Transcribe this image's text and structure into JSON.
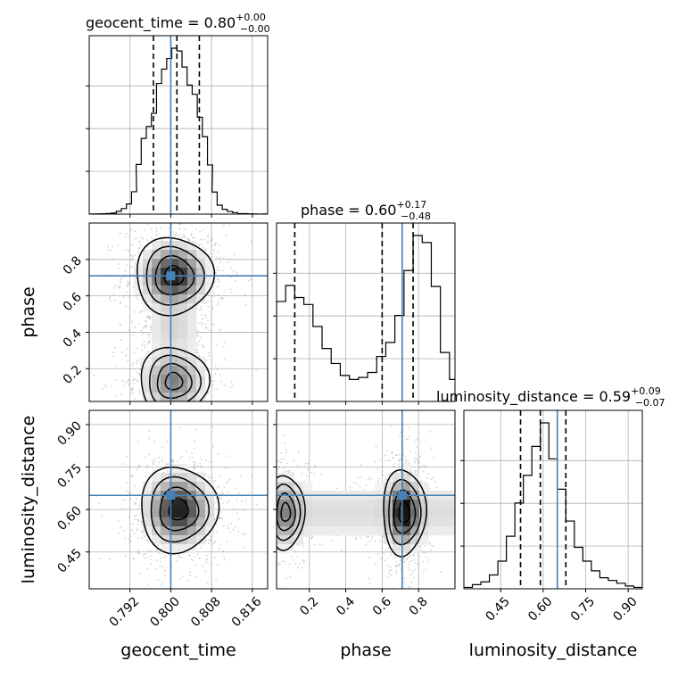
{
  "chart_data": {
    "type": "corner",
    "parameters": [
      "geocent_time",
      "phase",
      "luminosity_distance"
    ],
    "truths": {
      "geocent_time": 0.8,
      "phase": 0.71,
      "luminosity_distance": 0.65
    },
    "truth_color": "#4682b4",
    "grid": true,
    "diagonal": [
      {
        "parameter": "geocent_time",
        "title_name": "geocent_time",
        "title_median": "0.80",
        "title_plus": "+0.00",
        "title_minus": "−0.00",
        "range": [
          0.784,
          0.819
        ],
        "ticks": [
          0.792,
          0.8,
          0.808,
          0.816
        ],
        "tick_labels": [
          "0.792",
          "0.800",
          "0.808",
          "0.816"
        ],
        "quantiles": [
          0.7966,
          0.8012,
          0.8056
        ],
        "hist_x": [
          0.7843,
          0.7853,
          0.7863,
          0.7873,
          0.7883,
          0.7893,
          0.7903,
          0.7913,
          0.7923,
          0.7932,
          0.7942,
          0.7952,
          0.7962,
          0.7972,
          0.7982,
          0.7992,
          0.8002,
          0.8012,
          0.8022,
          0.8032,
          0.8042,
          0.8052,
          0.8062,
          0.8072,
          0.8081,
          0.8091,
          0.8101,
          0.8111,
          0.8121,
          0.8131,
          0.8141,
          0.8151,
          0.8161,
          0.8171,
          0.8181
        ],
        "hist_counts": [
          1,
          2,
          3,
          5,
          8,
          22,
          44,
          81,
          178,
          395,
          603,
          697,
          802,
          1040,
          1154,
          1239,
          1321,
          1299,
          1171,
          1027,
          954,
          771,
          616,
          391,
          176,
          71,
          38,
          21,
          12,
          4,
          4,
          2,
          1,
          0,
          1
        ]
      },
      {
        "parameter": "phase",
        "title_name": "phase",
        "title_median": "0.60",
        "title_plus": "+0.17",
        "title_minus": "−0.48",
        "range": [
          0.02,
          1.0
        ],
        "ticks": [
          0.2,
          0.4,
          0.6,
          0.8
        ],
        "tick_labels": [
          "0.2",
          "0.4",
          "0.6",
          "0.8"
        ],
        "quantiles": [
          0.12,
          0.6,
          0.77
        ],
        "hist_x": [
          0.02,
          0.07,
          0.12,
          0.17,
          0.22,
          0.27,
          0.32,
          0.37,
          0.42,
          0.47,
          0.52,
          0.57,
          0.62,
          0.67,
          0.72,
          0.77,
          0.82,
          0.87,
          0.92,
          0.97
        ],
        "hist_counts": [
          1.0,
          1.16,
          1.04,
          0.97,
          0.75,
          0.53,
          0.38,
          0.26,
          0.22,
          0.24,
          0.29,
          0.45,
          0.59,
          0.86,
          1.31,
          1.66,
          1.59,
          1.15,
          0.49,
          0.22
        ]
      },
      {
        "parameter": "luminosity_distance",
        "title_name": "luminosity_distance",
        "title_median": "0.59",
        "title_plus": "+0.09",
        "title_minus": "−0.07",
        "range": [
          0.32,
          0.95
        ],
        "ticks": [
          0.45,
          0.6,
          0.75,
          0.9
        ],
        "tick_labels": [
          "0.45",
          "0.60",
          "0.75",
          "0.90"
        ],
        "quantiles": [
          0.52,
          0.59,
          0.68
        ],
        "hist_x": [
          0.32,
          0.35,
          0.38,
          0.41,
          0.44,
          0.47,
          0.5,
          0.53,
          0.56,
          0.59,
          0.62,
          0.65,
          0.68,
          0.71,
          0.74,
          0.77,
          0.8,
          0.83,
          0.86,
          0.89,
          0.92
        ],
        "hist_counts": [
          0.01,
          0.03,
          0.05,
          0.1,
          0.2,
          0.38,
          0.62,
          0.82,
          1.03,
          1.2,
          0.94,
          0.72,
          0.49,
          0.3,
          0.2,
          0.13,
          0.08,
          0.06,
          0.04,
          0.02,
          0.01
        ]
      }
    ],
    "pairs": [
      {
        "x": "geocent_time",
        "y": "phase",
        "peaks": [
          {
            "x": 0.8006,
            "y": 0.71,
            "w": 1.0
          },
          {
            "x": 0.8006,
            "y": 0.13,
            "w": 0.55
          }
        ]
      },
      {
        "x": "geocent_time",
        "y": "luminosity_distance",
        "peaks": [
          {
            "x": 0.8015,
            "y": 0.6,
            "w": 1.0
          }
        ]
      },
      {
        "x": "phase",
        "y": "luminosity_distance",
        "peaks": [
          {
            "x": 0.72,
            "y": 0.59,
            "w": 1.0
          },
          {
            "x": 0.07,
            "y": 0.59,
            "w": 0.45
          }
        ]
      }
    ]
  }
}
